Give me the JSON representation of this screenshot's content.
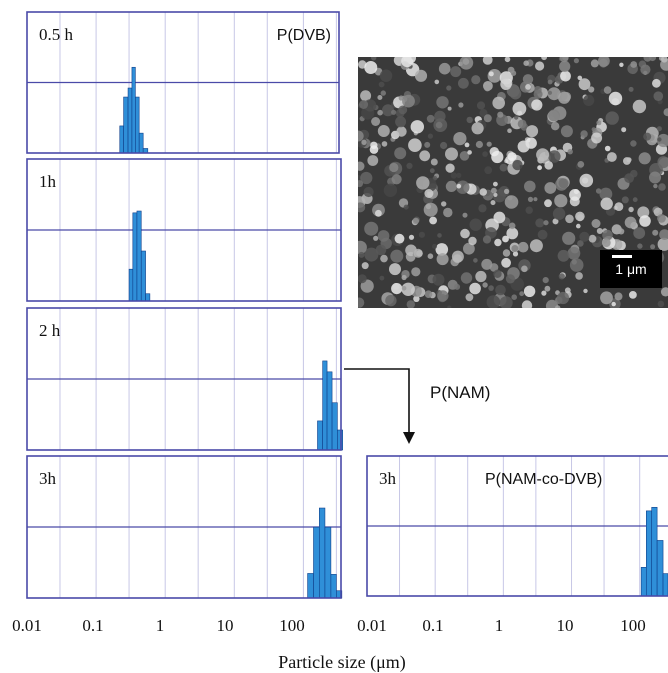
{
  "chart_data": [
    {
      "type": "bar",
      "panel_label": "0.5 h",
      "title": "P(DVB)",
      "x_scale": "log",
      "xlim": [
        0.01,
        400
      ],
      "bins": [
        [
          0.22,
          0.25,
          0.3
        ],
        [
          0.25,
          0.29,
          0.62
        ],
        [
          0.29,
          0.33,
          0.72
        ],
        [
          0.33,
          0.37,
          0.95
        ],
        [
          0.37,
          0.42,
          0.62
        ],
        [
          0.42,
          0.48,
          0.22
        ],
        [
          0.48,
          0.56,
          0.05
        ]
      ]
    },
    {
      "type": "bar",
      "panel_label": "1h",
      "title": "",
      "x_scale": "log",
      "xlim": [
        0.01,
        400
      ],
      "bins": [
        [
          0.3,
          0.34,
          0.35
        ],
        [
          0.34,
          0.39,
          0.97
        ],
        [
          0.39,
          0.45,
          0.99
        ],
        [
          0.45,
          0.52,
          0.55
        ],
        [
          0.52,
          0.6,
          0.08
        ]
      ]
    },
    {
      "type": "bar",
      "panel_label": "2 h",
      "title": "",
      "x_scale": "log",
      "xlim": [
        0.01,
        400
      ],
      "bins": [
        [
          160,
          190,
          0.32
        ],
        [
          190,
          220,
          0.98
        ],
        [
          220,
          260,
          0.86
        ],
        [
          260,
          310,
          0.52
        ],
        [
          310,
          370,
          0.22
        ]
      ]
    },
    {
      "type": "bar",
      "panel_label": "3h",
      "title": "",
      "x_scale": "log",
      "xlim": [
        0.01,
        400
      ],
      "bins": [
        [
          115,
          140,
          0.27
        ],
        [
          140,
          170,
          0.78
        ],
        [
          170,
          205,
          0.99
        ],
        [
          205,
          250,
          0.78
        ],
        [
          250,
          300,
          0.26
        ],
        [
          300,
          360,
          0.08
        ]
      ]
    },
    {
      "type": "bar",
      "panel_label": "3h",
      "title": "P(NAM-co-DVB)",
      "x_scale": "log",
      "xlim": [
        0.01,
        260
      ],
      "bins": [
        [
          105,
          125,
          0.32
        ],
        [
          125,
          150,
          0.95
        ],
        [
          150,
          180,
          0.99
        ],
        [
          180,
          220,
          0.62
        ],
        [
          220,
          260,
          0.25
        ]
      ]
    }
  ],
  "axis": {
    "ticks": [
      0.01,
      0.1,
      1,
      10,
      100
    ],
    "tick_labels": [
      "0.01",
      "0.1",
      "1",
      "10",
      "100"
    ],
    "xlabel": "Particle size (μm)"
  },
  "annotation": {
    "arrow_label": "P(NAM)"
  },
  "sem_image": {
    "scale_label": "1 μm"
  },
  "colors": {
    "frame": "#4a4aa8",
    "grid": "#c7c7e6",
    "bar": "#2f8fd8",
    "bar_edge": "#0f3f8a"
  }
}
